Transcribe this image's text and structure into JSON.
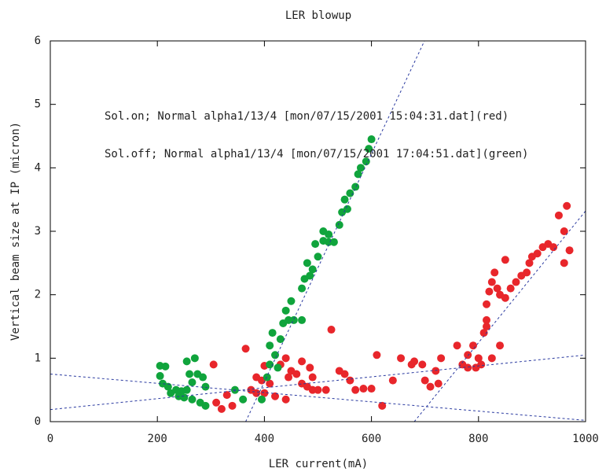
{
  "chart_data": {
    "type": "scatter",
    "title": "LER blowup",
    "x_label": "LER current(mA)",
    "y_label": "Vertical beam size at IP (micron)",
    "xlim": [
      0,
      1000
    ],
    "xticks": [
      0,
      200,
      400,
      600,
      800,
      1000
    ],
    "ylim": [
      0,
      6
    ],
    "yticks": [
      0,
      1,
      2,
      3,
      4,
      5,
      6
    ],
    "series": [
      {
        "name": "Sol.on; Normal alpha1/13/4 [mon/07/15/2001 15:04:31.dat](red)",
        "color": "#e8262b",
        "x": [
          305,
          310,
          320,
          340,
          365,
          375,
          385,
          395,
          400,
          410,
          420,
          400,
          430,
          440,
          450,
          460,
          470,
          480,
          485,
          490,
          500,
          515,
          525,
          540,
          550,
          570,
          585,
          600,
          610,
          620,
          640,
          655,
          675,
          680,
          695,
          700,
          710,
          720,
          725,
          730,
          760,
          770,
          780,
          790,
          800,
          805,
          810,
          815,
          815,
          820,
          825,
          830,
          835,
          840,
          850,
          860,
          870,
          880,
          890,
          895,
          900,
          910,
          920,
          930,
          940,
          950,
          960,
          965,
          960,
          970,
          850,
          825,
          840,
          815,
          780,
          470,
          445,
          490,
          560,
          795,
          440,
          385,
          330
        ],
        "values": [
          0.9,
          0.3,
          0.2,
          0.25,
          1.15,
          0.5,
          0.7,
          0.65,
          0.45,
          0.6,
          0.4,
          0.88,
          0.9,
          1.0,
          0.8,
          0.75,
          0.6,
          0.55,
          0.85,
          0.5,
          0.5,
          0.5,
          1.45,
          0.8,
          0.75,
          0.5,
          0.52,
          0.52,
          1.05,
          0.25,
          0.65,
          1.0,
          0.9,
          0.95,
          0.9,
          0.65,
          0.55,
          0.8,
          0.6,
          1.0,
          1.2,
          0.9,
          1.05,
          1.2,
          1.0,
          0.9,
          1.4,
          1.6,
          1.85,
          2.05,
          2.2,
          2.35,
          2.1,
          2.0,
          1.95,
          2.1,
          2.2,
          2.3,
          2.35,
          2.5,
          2.6,
          2.65,
          2.75,
          2.8,
          2.75,
          3.25,
          3.0,
          3.4,
          2.5,
          2.7,
          2.55,
          1.0,
          1.2,
          1.5,
          0.85,
          0.95,
          0.7,
          0.7,
          0.65,
          0.85,
          0.35,
          0.45,
          0.42
        ]
      },
      {
        "name": "Sol.off; Normal alpha1/13/4 [mon/07/15/2001 17:04:51.dat](green)",
        "color": "#10a43c",
        "x": [
          205,
          215,
          205,
          210,
          220,
          225,
          235,
          245,
          255,
          260,
          265,
          270,
          275,
          285,
          280,
          290,
          255,
          240,
          250,
          265,
          290,
          345,
          360,
          395,
          405,
          410,
          410,
          415,
          420,
          425,
          430,
          435,
          440,
          445,
          455,
          470,
          450,
          470,
          475,
          480,
          490,
          500,
          495,
          510,
          520,
          530,
          510,
          520,
          540,
          545,
          550,
          560,
          570,
          575,
          580,
          590,
          595,
          600,
          555,
          485
        ],
        "values": [
          0.88,
          0.87,
          0.72,
          0.6,
          0.55,
          0.45,
          0.5,
          0.48,
          0.5,
          0.75,
          0.62,
          1.0,
          0.75,
          0.7,
          0.3,
          0.25,
          0.95,
          0.4,
          0.38,
          0.35,
          0.55,
          0.5,
          0.35,
          0.35,
          0.7,
          0.9,
          1.2,
          1.4,
          1.05,
          0.85,
          1.3,
          1.55,
          1.75,
          1.6,
          1.6,
          1.6,
          1.9,
          2.1,
          2.25,
          2.5,
          2.4,
          2.6,
          2.8,
          2.85,
          2.83,
          2.83,
          3.0,
          2.95,
          3.1,
          3.3,
          3.5,
          3.6,
          3.7,
          3.9,
          4.0,
          4.1,
          4.3,
          4.45,
          3.35,
          2.3
        ]
      }
    ],
    "fit_lines": [
      {
        "x": [
          365,
          699
        ],
        "y": [
          0,
          6
        ]
      },
      {
        "x": [
          680,
          1000
        ],
        "y": [
          0,
          3.32
        ]
      },
      {
        "x": [
          0,
          1000
        ],
        "y": [
          0.19,
          1.05
        ]
      },
      {
        "x": [
          0,
          1000
        ],
        "y": [
          0.75,
          0.02
        ]
      }
    ]
  }
}
